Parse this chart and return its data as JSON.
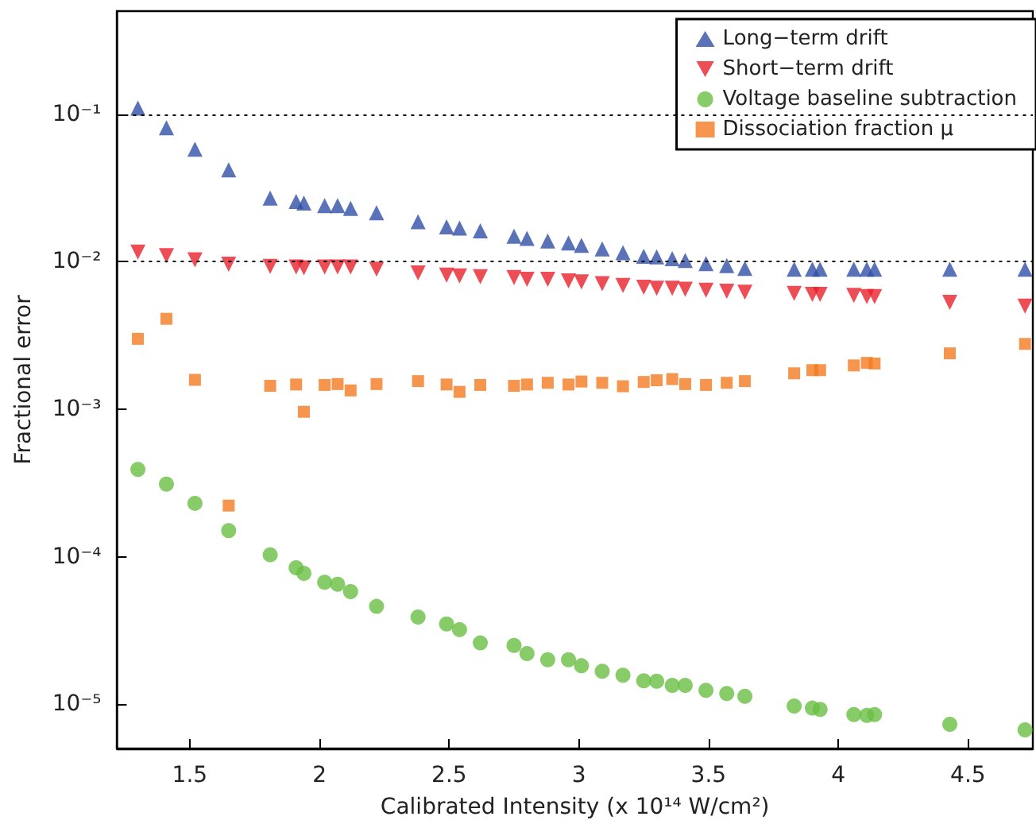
{
  "chart_data": {
    "type": "scatter",
    "xlabel": "Calibrated Intensity (x 10¹⁴ W/cm²)",
    "ylabel": "Fractional error",
    "x": [
      1.3,
      1.41,
      1.52,
      1.65,
      1.81,
      1.91,
      1.94,
      2.02,
      2.07,
      2.12,
      2.22,
      2.38,
      2.49,
      2.54,
      2.62,
      2.75,
      2.8,
      2.88,
      2.96,
      3.01,
      3.09,
      3.17,
      3.25,
      3.3,
      3.36,
      3.41,
      3.49,
      3.57,
      3.64,
      3.83,
      3.9,
      3.93,
      4.06,
      4.11,
      4.14,
      4.43,
      4.72
    ],
    "series": [
      {
        "name": "Long−term drift",
        "color": "#2f4fa6",
        "marker": "triangle",
        "values": [
          0.11,
          0.081,
          0.058,
          0.042,
          0.027,
          0.0256,
          0.025,
          0.024,
          0.024,
          0.023,
          0.0215,
          0.0187,
          0.0172,
          0.0169,
          0.0162,
          0.0149,
          0.0144,
          0.0138,
          0.0134,
          0.0129,
          0.0122,
          0.0115,
          0.0109,
          0.0108,
          0.0105,
          0.0102,
          0.0097,
          0.0094,
          0.009,
          0.0089,
          0.0089,
          0.0089,
          0.0089,
          0.0089,
          0.0089,
          0.0089,
          0.0089
        ]
      },
      {
        "name": "Short−term drift",
        "color": "#e8202a",
        "marker": "triangle-down",
        "values": [
          0.0116,
          0.011,
          0.0103,
          0.0096,
          0.0093,
          0.0092,
          0.0091,
          0.0092,
          0.0092,
          0.0092,
          0.0089,
          0.0084,
          0.0081,
          0.008,
          0.0079,
          0.0078,
          0.0076,
          0.0076,
          0.0074,
          0.0073,
          0.0071,
          0.0069,
          0.0067,
          0.0066,
          0.0066,
          0.0065,
          0.0064,
          0.0063,
          0.0062,
          0.0061,
          0.006,
          0.006,
          0.0059,
          0.0058,
          0.0058,
          0.0053,
          0.005
        ]
      },
      {
        "name": "Voltage baseline subtraction",
        "color": "#6abf45",
        "marker": "circle",
        "values": [
          0.00039,
          0.00031,
          0.00023,
          0.00015,
          0.000103,
          8.4e-05,
          7.7e-05,
          6.7e-05,
          6.5e-05,
          5.8e-05,
          4.6e-05,
          3.9e-05,
          3.5e-05,
          3.2e-05,
          2.6e-05,
          2.5e-05,
          2.2e-05,
          2e-05,
          2e-05,
          1.82e-05,
          1.67e-05,
          1.57e-05,
          1.44e-05,
          1.43e-05,
          1.34e-05,
          1.34e-05,
          1.24e-05,
          1.18e-05,
          1.13e-05,
          9.7e-06,
          9.4e-06,
          9.2e-06,
          8.5e-06,
          8.4e-06,
          8.5e-06,
          7.3e-06,
          6.7e-06
        ]
      },
      {
        "name": "Dissociation fraction μ",
        "color": "#f47b20",
        "marker": "square",
        "values": [
          0.003,
          0.0041,
          0.00158,
          0.000222,
          0.00144,
          0.00147,
          0.00096,
          0.00146,
          0.00148,
          0.00134,
          0.00148,
          0.00155,
          0.00147,
          0.00131,
          0.00146,
          0.00144,
          0.00147,
          0.00151,
          0.00147,
          0.00154,
          0.00151,
          0.00143,
          0.00153,
          0.00157,
          0.0016,
          0.00148,
          0.00146,
          0.00151,
          0.00155,
          0.00175,
          0.00184,
          0.00184,
          0.00198,
          0.00206,
          0.00204,
          0.00239,
          0.00277
        ]
      }
    ],
    "log": "y",
    "xlim": [
      1.22,
      4.75
    ],
    "xticks": [
      1.5,
      2,
      2.5,
      3,
      3.5,
      4,
      4.5
    ],
    "ylim": [
      5e-06,
      0.5
    ],
    "yticks": [
      {
        "value": 1e-05,
        "label": "10⁻⁵"
      },
      {
        "value": 0.0001,
        "label": "10⁻⁴"
      },
      {
        "value": 0.001,
        "label": "10⁻³"
      },
      {
        "value": 0.01,
        "label": "10⁻²"
      },
      {
        "value": 0.1,
        "label": "10⁻¹"
      }
    ],
    "grid": "y",
    "legend": "top right"
  }
}
